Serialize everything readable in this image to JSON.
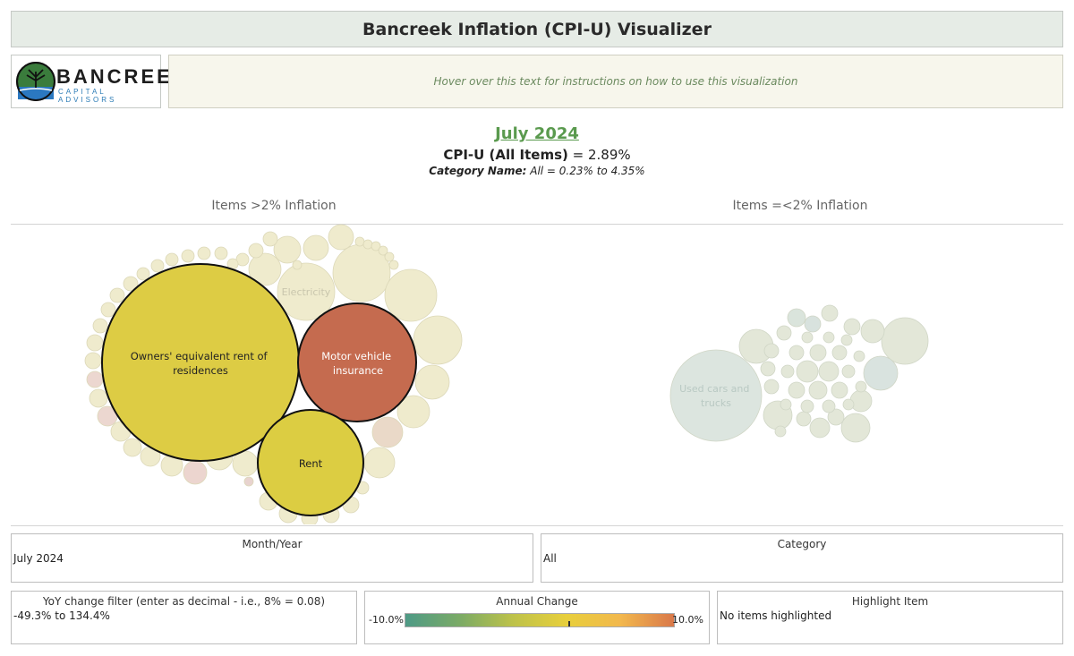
{
  "header": {
    "title": "Bancreek Inflation (CPI-U) Visualizer"
  },
  "logo": {
    "word": "BANCREEK",
    "sub": "CAPITAL ADVISORS"
  },
  "instructions": {
    "text": "Hover over this text for instructions on how to use this visualization"
  },
  "summary": {
    "date": "July 2024",
    "cpi_label": "CPI-U (All Items)",
    "cpi_value": "= 2.89%",
    "category_label": "Category Name:",
    "category_value": "All = 0.23% to 4.35%"
  },
  "sections": {
    "left": "Items >2% Inflation",
    "right": "Items =<2% Inflation"
  },
  "bubbles_labels": {
    "oer": [
      "Owners' equivalent rent of",
      "residences"
    ],
    "motor": [
      "Motor vehicle",
      "insurance"
    ],
    "rent": [
      "Rent"
    ],
    "electricity": [
      "Electricity"
    ],
    "used_cars": [
      "Used cars and",
      "trucks"
    ]
  },
  "colors": {
    "oer": "#ddcc44",
    "motor": "#c56b4f",
    "rent": "#dccd42",
    "faded_left": "#efebcd",
    "faded_right": "#e3e7d8",
    "used_cars": "#dce5df"
  },
  "filters": {
    "month_year": {
      "title": "Month/Year",
      "value": "July 2024"
    },
    "category": {
      "title": "Category",
      "value": "All"
    },
    "yoy": {
      "title": "YoY change filter (enter as decimal - i.e., 8% = 0.08)",
      "value": "-49.3% to 134.4%"
    },
    "annual_change": {
      "title": "Annual Change",
      "min": "-10.0%",
      "max": "10.0%"
    },
    "highlight": {
      "title": "Highlight Item",
      "value": "No items highlighted"
    }
  }
}
